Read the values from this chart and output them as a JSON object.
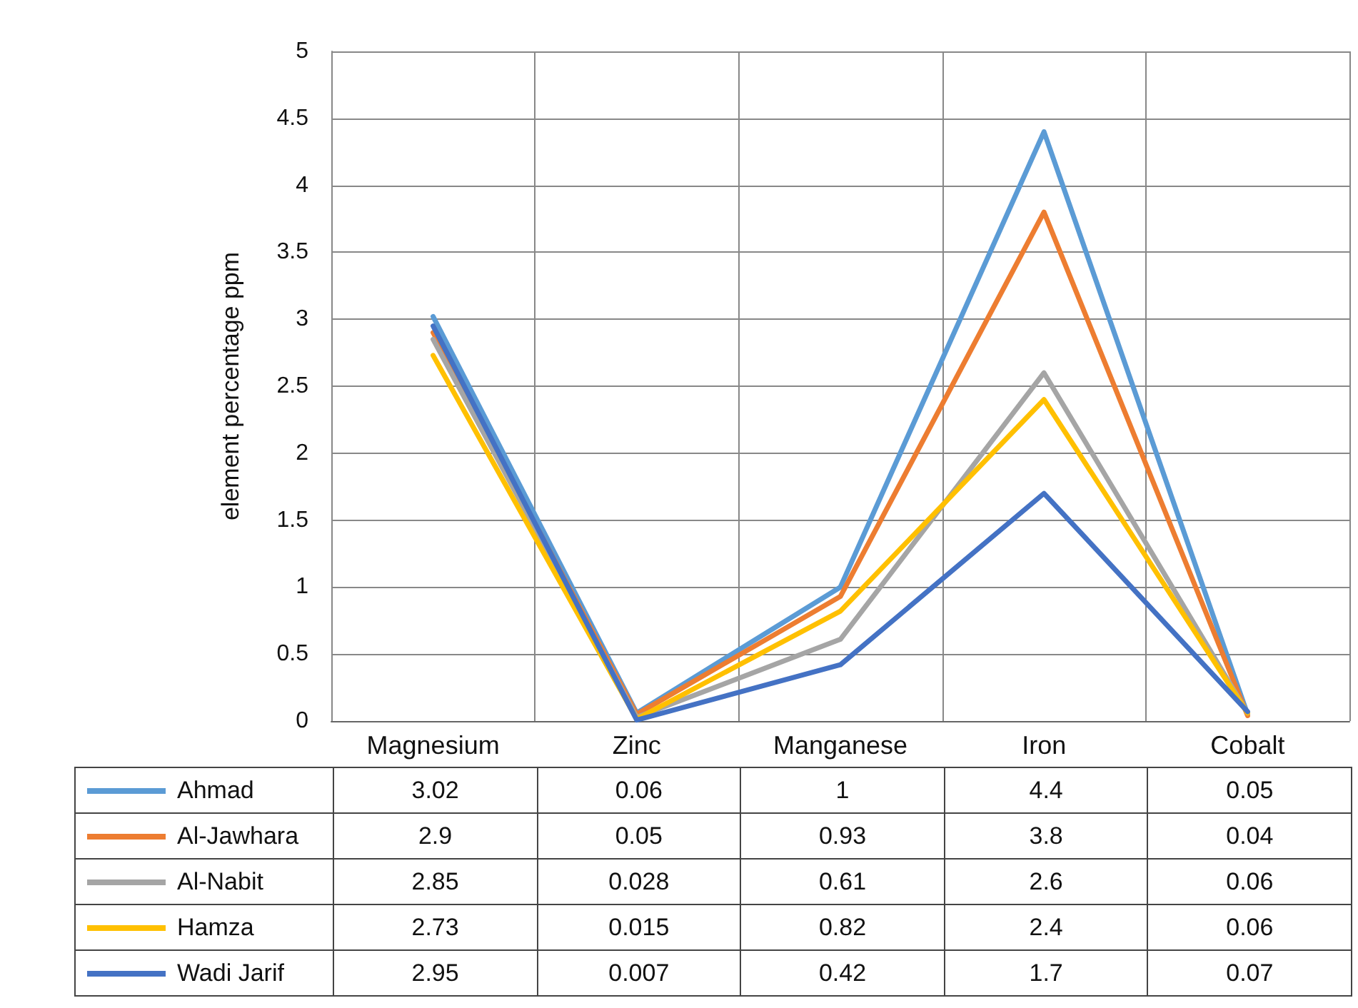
{
  "chart_data": {
    "type": "line",
    "ylabel": "element percentage ppm",
    "categories": [
      "Magnesium",
      "Zinc",
      "Manganese",
      "Iron",
      "Cobalt"
    ],
    "series": [
      {
        "name": "Ahmad",
        "color": "#5b9bd5",
        "values": [
          3.02,
          0.06,
          1,
          4.4,
          0.05
        ]
      },
      {
        "name": "Al-Jawhara",
        "color": "#ed7d31",
        "values": [
          2.9,
          0.05,
          0.93,
          3.8,
          0.04
        ]
      },
      {
        "name": "Al-Nabit",
        "color": "#a5a5a5",
        "values": [
          2.85,
          0.028,
          0.61,
          2.6,
          0.06
        ]
      },
      {
        "name": "Hamza",
        "color": "#ffc000",
        "values": [
          2.73,
          0.015,
          0.82,
          2.4,
          0.06
        ]
      },
      {
        "name": "Wadi Jarif",
        "color": "#4472c4",
        "values": [
          2.95,
          0.007,
          0.42,
          1.7,
          0.07
        ]
      }
    ],
    "ylim": [
      0,
      5
    ],
    "yticks": [
      0,
      0.5,
      1,
      1.5,
      2,
      2.5,
      3,
      3.5,
      4,
      4.5,
      5
    ],
    "grid": true,
    "legend": "bottom",
    "marker": "none",
    "line_style": "solid",
    "data_labels": true
  }
}
